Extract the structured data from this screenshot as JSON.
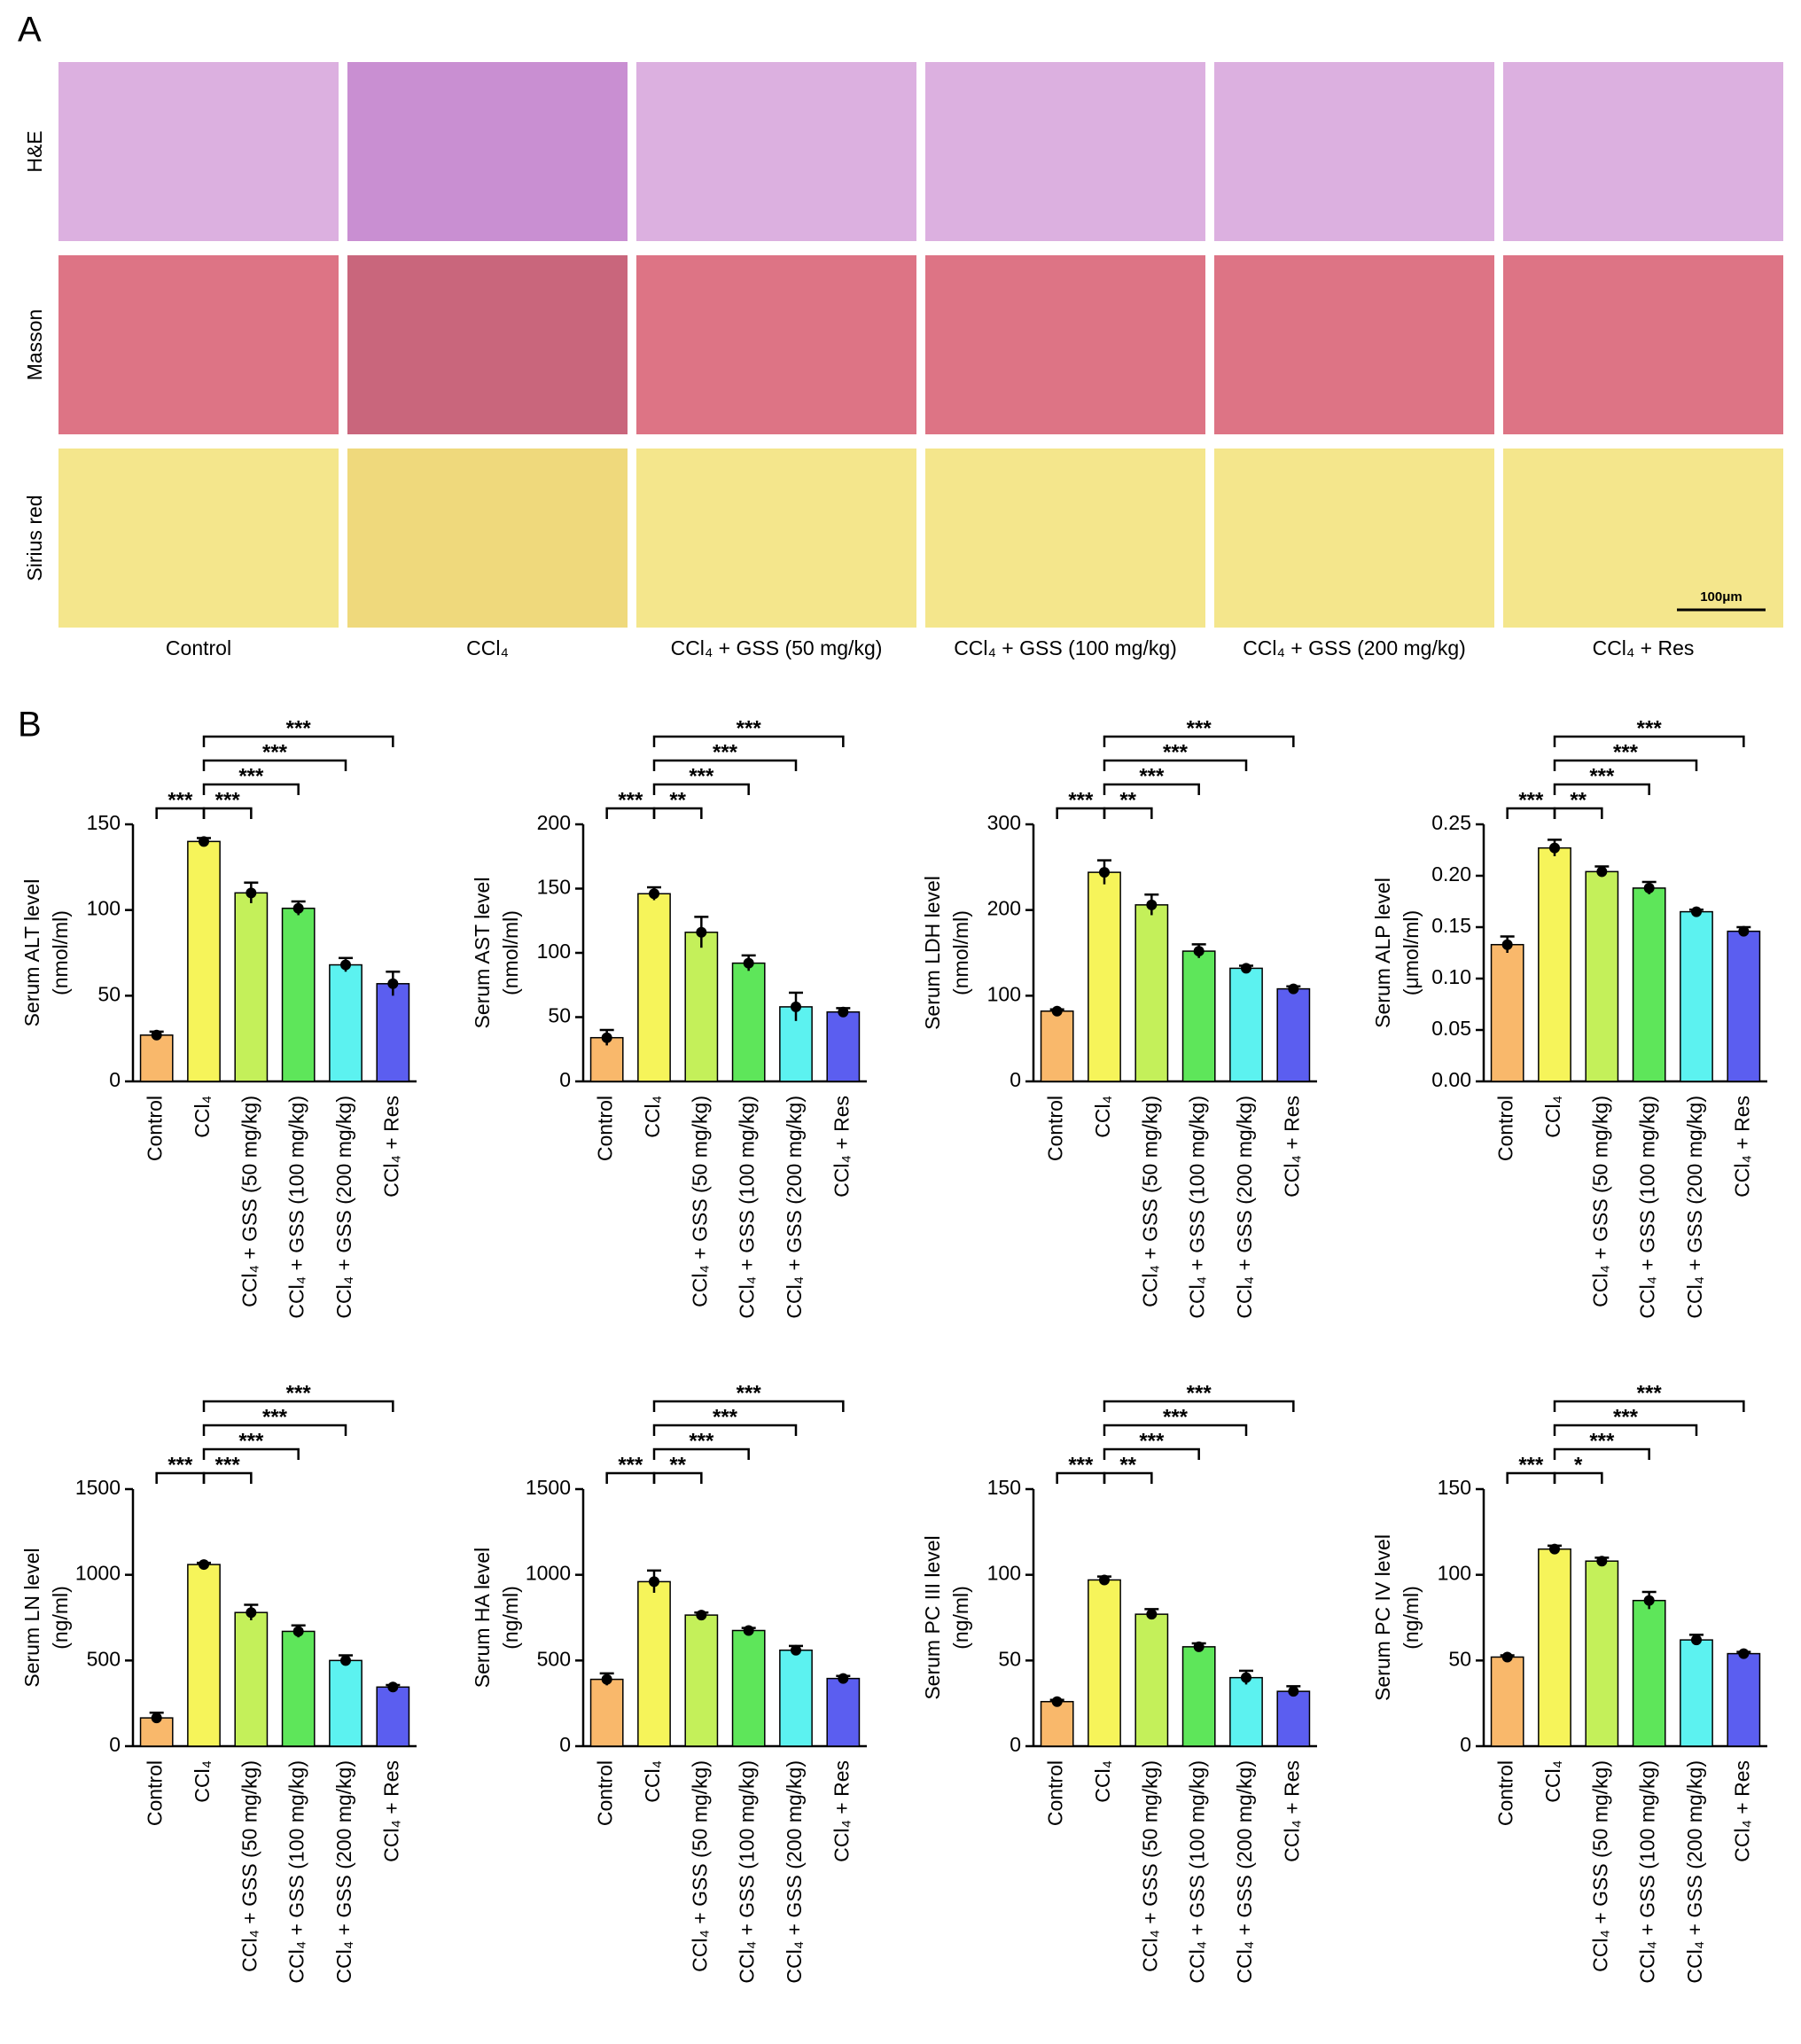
{
  "panel_a": {
    "label": "A",
    "rows": [
      "H&E",
      "Masson",
      "Sirius red"
    ],
    "columns": [
      "Control",
      "CCl₄",
      "CCl₄ + GSS (50 mg/kg)",
      "CCl₄ + GSS (100 mg/kg)",
      "CCl₄ + GSS (200 mg/kg)",
      "CCl₄ + Res"
    ],
    "scale_bar": "100μm"
  },
  "panel_b": {
    "label": "B"
  },
  "chart_data": [
    {
      "type": "bar",
      "ylabel": [
        "Serum ALT level",
        "(nmol/ml)"
      ],
      "categories": [
        "Control",
        "CCl₄",
        "CCl₄ + GSS (50 mg/kg)",
        "CCl₄ + GSS (100 mg/kg)",
        "CCl₄ + GSS (200 mg/kg)",
        "CCl₄ + Res"
      ],
      "colors": [
        "#f9b86b",
        "#f6f45a",
        "#c4f05a",
        "#5ee65a",
        "#5cf2f0",
        "#5b5ef0"
      ],
      "values": [
        27,
        140,
        110,
        101,
        68,
        57
      ],
      "errors": [
        2,
        2,
        6,
        4,
        4,
        7
      ],
      "ylim": [
        0,
        150
      ],
      "yticks": [
        0,
        50,
        100,
        150
      ],
      "annotations": [
        {
          "label": "***",
          "from": 0,
          "to": 1
        },
        {
          "label": "***",
          "from": 1,
          "to": 2
        },
        {
          "label": "***",
          "from": 1,
          "to": 3
        },
        {
          "label": "***",
          "from": 1,
          "to": 4
        },
        {
          "label": "***",
          "from": 1,
          "to": 5
        }
      ]
    },
    {
      "type": "bar",
      "ylabel": [
        "Serum AST level",
        "(nmol/ml)"
      ],
      "categories": [
        "Control",
        "CCl₄",
        "CCl₄ + GSS (50 mg/kg)",
        "CCl₄ + GSS (100 mg/kg)",
        "CCl₄ + GSS (200 mg/kg)",
        "CCl₄ + Res"
      ],
      "colors": [
        "#f9b86b",
        "#f6f45a",
        "#c4f05a",
        "#5ee65a",
        "#5cf2f0",
        "#5b5ef0"
      ],
      "values": [
        34,
        146,
        116,
        92,
        58,
        54
      ],
      "errors": [
        6,
        5,
        12,
        6,
        11,
        3
      ],
      "ylim": [
        0,
        200
      ],
      "yticks": [
        0,
        50,
        100,
        150,
        200
      ],
      "annotations": [
        {
          "label": "***",
          "from": 0,
          "to": 1
        },
        {
          "label": "**",
          "from": 1,
          "to": 2
        },
        {
          "label": "***",
          "from": 1,
          "to": 3
        },
        {
          "label": "***",
          "from": 1,
          "to": 4
        },
        {
          "label": "***",
          "from": 1,
          "to": 5
        }
      ]
    },
    {
      "type": "bar",
      "ylabel": [
        "Serum LDH level",
        "(nmol/ml)"
      ],
      "categories": [
        "Control",
        "CCl₄",
        "CCl₄ + GSS (50 mg/kg)",
        "CCl₄ + GSS (100 mg/kg)",
        "CCl₄ + GSS (200 mg/kg)",
        "CCl₄ + Res"
      ],
      "colors": [
        "#f9b86b",
        "#f6f45a",
        "#c4f05a",
        "#5ee65a",
        "#5cf2f0",
        "#5b5ef0"
      ],
      "values": [
        82,
        244,
        206,
        152,
        132,
        108
      ],
      "errors": [
        2,
        14,
        12,
        8,
        3,
        3
      ],
      "ylim": [
        0,
        300
      ],
      "yticks": [
        0,
        100,
        200,
        300
      ],
      "annotations": [
        {
          "label": "***",
          "from": 0,
          "to": 1
        },
        {
          "label": "**",
          "from": 1,
          "to": 2
        },
        {
          "label": "***",
          "from": 1,
          "to": 3
        },
        {
          "label": "***",
          "from": 1,
          "to": 4
        },
        {
          "label": "***",
          "from": 1,
          "to": 5
        }
      ]
    },
    {
      "type": "bar",
      "ylabel": [
        "Serum ALP level",
        "(μmol/ml)"
      ],
      "categories": [
        "Control",
        "CCl₄",
        "CCl₄ + GSS (50 mg/kg)",
        "CCl₄ + GSS (100 mg/kg)",
        "CCl₄ + GSS (200 mg/kg)",
        "CCl₄ + Res"
      ],
      "colors": [
        "#f9b86b",
        "#f6f45a",
        "#c4f05a",
        "#5ee65a",
        "#5cf2f0",
        "#5b5ef0"
      ],
      "values": [
        0.133,
        0.227,
        0.204,
        0.188,
        0.165,
        0.146
      ],
      "errors": [
        0.008,
        0.008,
        0.005,
        0.006,
        0.002,
        0.004
      ],
      "ylim": [
        0,
        0.25
      ],
      "yticks": [
        {
          "value": 0,
          "label": "0.00"
        },
        {
          "value": 0.05,
          "label": "0.05"
        },
        {
          "value": 0.1,
          "label": "0.10"
        },
        {
          "value": 0.15,
          "label": "0.15"
        },
        {
          "value": 0.2,
          "label": "0.20"
        },
        {
          "value": 0.25,
          "label": "0.25"
        }
      ],
      "annotations": [
        {
          "label": "***",
          "from": 0,
          "to": 1
        },
        {
          "label": "**",
          "from": 1,
          "to": 2
        },
        {
          "label": "***",
          "from": 1,
          "to": 3
        },
        {
          "label": "***",
          "from": 1,
          "to": 4
        },
        {
          "label": "***",
          "from": 1,
          "to": 5
        }
      ]
    },
    {
      "type": "bar",
      "ylabel": [
        "Serum LN level",
        "(ng/ml)"
      ],
      "categories": [
        "Control",
        "CCl₄",
        "CCl₄ + GSS (50 mg/kg)",
        "CCl₄ + GSS (100 mg/kg)",
        "CCl₄ + GSS (200 mg/kg)",
        "CCl₄ + Res"
      ],
      "colors": [
        "#f9b86b",
        "#f6f45a",
        "#c4f05a",
        "#5ee65a",
        "#5cf2f0",
        "#5b5ef0"
      ],
      "values": [
        165,
        1060,
        780,
        670,
        500,
        345
      ],
      "errors": [
        30,
        10,
        45,
        35,
        30,
        12
      ],
      "ylim": [
        0,
        1500
      ],
      "yticks": [
        0,
        500,
        1000,
        1500
      ],
      "annotations": [
        {
          "label": "***",
          "from": 0,
          "to": 1
        },
        {
          "label": "***",
          "from": 1,
          "to": 2
        },
        {
          "label": "***",
          "from": 1,
          "to": 3
        },
        {
          "label": "***",
          "from": 1,
          "to": 4
        },
        {
          "label": "***",
          "from": 1,
          "to": 5
        }
      ]
    },
    {
      "type": "bar",
      "ylabel": [
        "Serum HA level",
        "(ng/ml)"
      ],
      "categories": [
        "Control",
        "CCl₄",
        "CCl₄ + GSS (50 mg/kg)",
        "CCl₄ + GSS (100 mg/kg)",
        "CCl₄ + GSS (200 mg/kg)",
        "CCl₄ + Res"
      ],
      "colors": [
        "#f9b86b",
        "#f6f45a",
        "#c4f05a",
        "#5ee65a",
        "#5cf2f0",
        "#5b5ef0"
      ],
      "values": [
        390,
        960,
        765,
        675,
        560,
        395
      ],
      "errors": [
        35,
        65,
        15,
        15,
        25,
        15
      ],
      "ylim": [
        0,
        1500
      ],
      "yticks": [
        0,
        500,
        1000,
        1500
      ],
      "annotations": [
        {
          "label": "***",
          "from": 0,
          "to": 1
        },
        {
          "label": "**",
          "from": 1,
          "to": 2
        },
        {
          "label": "***",
          "from": 1,
          "to": 3
        },
        {
          "label": "***",
          "from": 1,
          "to": 4
        },
        {
          "label": "***",
          "from": 1,
          "to": 5
        }
      ]
    },
    {
      "type": "bar",
      "ylabel": [
        "Serum PC III level",
        "(ng/ml)"
      ],
      "categories": [
        "Control",
        "CCl₄",
        "CCl₄ + GSS (50 mg/kg)",
        "CCl₄ + GSS (100 mg/kg)",
        "CCl₄ + GSS (200 mg/kg)",
        "CCl₄ + Res"
      ],
      "colors": [
        "#f9b86b",
        "#f6f45a",
        "#c4f05a",
        "#5ee65a",
        "#5cf2f0",
        "#5b5ef0"
      ],
      "values": [
        26,
        97,
        77,
        58,
        40,
        32
      ],
      "errors": [
        1,
        2,
        3,
        2,
        4,
        3
      ],
      "ylim": [
        0,
        150
      ],
      "yticks": [
        0,
        50,
        100,
        150
      ],
      "annotations": [
        {
          "label": "***",
          "from": 0,
          "to": 1
        },
        {
          "label": "**",
          "from": 1,
          "to": 2
        },
        {
          "label": "***",
          "from": 1,
          "to": 3
        },
        {
          "label": "***",
          "from": 1,
          "to": 4
        },
        {
          "label": "***",
          "from": 1,
          "to": 5
        }
      ]
    },
    {
      "type": "bar",
      "ylabel": [
        "Serum PC IV level",
        "(ng/ml)"
      ],
      "categories": [
        "Control",
        "CCl₄",
        "CCl₄ + GSS (50 mg/kg)",
        "CCl₄ + GSS (100 mg/kg)",
        "CCl₄ + GSS (200 mg/kg)",
        "CCl₄ + Res"
      ],
      "colors": [
        "#f9b86b",
        "#f6f45a",
        "#c4f05a",
        "#5ee65a",
        "#5cf2f0",
        "#5b5ef0"
      ],
      "values": [
        52,
        115,
        108,
        85,
        62,
        54
      ],
      "errors": [
        1,
        2,
        2,
        5,
        3,
        1
      ],
      "ylim": [
        0,
        150
      ],
      "yticks": [
        0,
        50,
        100,
        150
      ],
      "annotations": [
        {
          "label": "***",
          "from": 0,
          "to": 1
        },
        {
          "label": "*",
          "from": 1,
          "to": 2
        },
        {
          "label": "***",
          "from": 1,
          "to": 3
        },
        {
          "label": "***",
          "from": 1,
          "to": 4
        },
        {
          "label": "***",
          "from": 1,
          "to": 5
        }
      ]
    }
  ]
}
